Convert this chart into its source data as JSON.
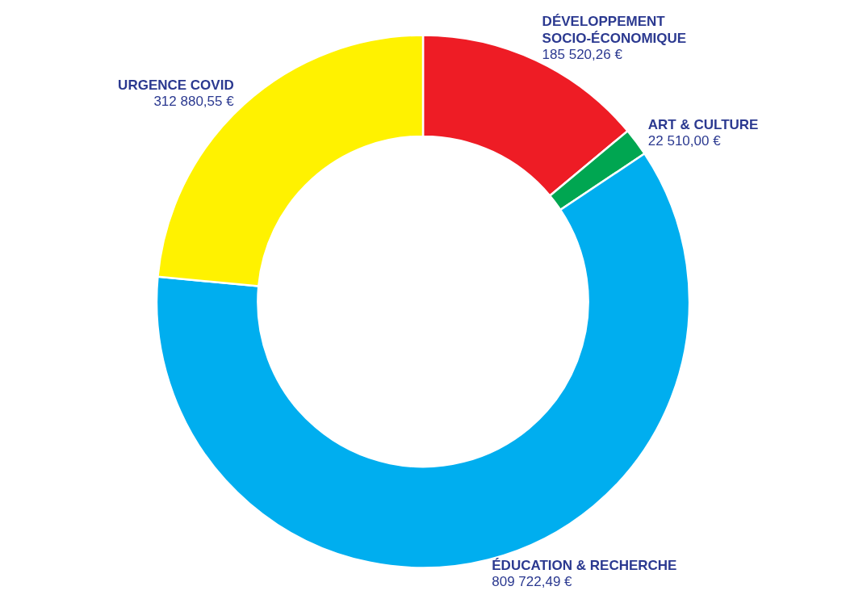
{
  "chart_data": {
    "type": "donut",
    "categories": [
      "DÉVELOPPEMENT SOCIO-ÉCONOMIQUE",
      "ART & CULTURE",
      "ÉDUCATION & RECHERCHE",
      "URGENCE COVID"
    ],
    "values": [
      185520.26,
      22510.0,
      809722.49,
      312880.55
    ],
    "colors": [
      "#ee1c25",
      "#00a651",
      "#00aeef",
      "#fff200"
    ],
    "value_labels": [
      "185 520,26 €",
      "22 510,00 €",
      "809 722,49 €",
      "312 880,55 €"
    ]
  }
}
